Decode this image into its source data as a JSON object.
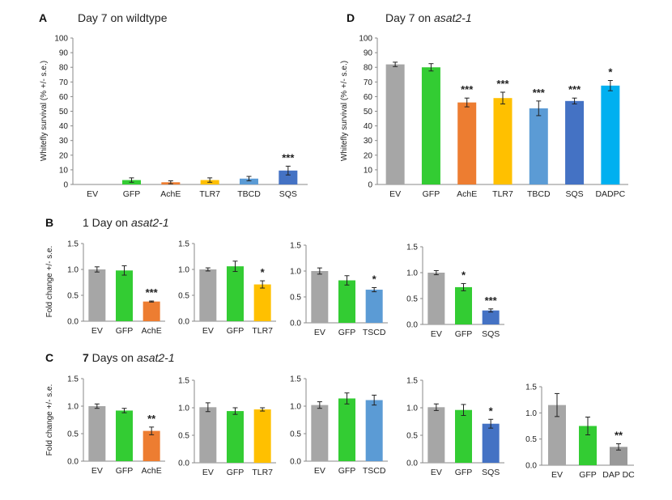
{
  "colors": {
    "EV": "#a6a6a6",
    "GFP": "#33cc33",
    "AchE": "#ed7d31",
    "TLR7": "#ffc000",
    "TBCD": "#5b9bd5",
    "TSCD": "#5b9bd5",
    "SQS": "#4472c4",
    "DADPC": "#00b0f0"
  },
  "panels": {
    "A": {
      "letter": "A",
      "title": "Day 7 on wildtype"
    },
    "B": {
      "letter": "B",
      "title_pre": "1 Day on ",
      "title_italic": "asat2-1"
    },
    "C": {
      "letter": "C",
      "title_bold": "7",
      "title_pre": " Days on ",
      "title_italic": "asat2-1"
    },
    "D": {
      "letter": "D",
      "title_pre": "Day 7 on ",
      "title_italic": "asat2-1"
    }
  },
  "chart_data": [
    {
      "id": "A",
      "type": "bar",
      "title": "Day 7 on wildtype",
      "ylabel": "Whitefly survival (% +/- s.e.)",
      "ylim": [
        0,
        100
      ],
      "yticks": [
        0,
        10,
        20,
        30,
        40,
        50,
        60,
        70,
        80,
        90,
        100
      ],
      "categories": [
        "EV",
        "GFP",
        "AchE",
        "TLR7",
        "TBCD",
        "SQS"
      ],
      "values": [
        0,
        3,
        1.5,
        3,
        4,
        9.5
      ],
      "errors": [
        0,
        1.5,
        1,
        1.5,
        1.5,
        3
      ],
      "significance": [
        "",
        "",
        "",
        "",
        "",
        "***"
      ]
    },
    {
      "id": "D",
      "type": "bar",
      "title": "Day 7 on asat2-1",
      "ylabel": "Whitefly survival (% +/- s.e.)",
      "ylim": [
        0,
        100
      ],
      "yticks": [
        0,
        10,
        20,
        30,
        40,
        50,
        60,
        70,
        80,
        90,
        100
      ],
      "categories": [
        "EV",
        "GFP",
        "AchE",
        "TLR7",
        "TBCD",
        "SQS",
        "DADPC"
      ],
      "values": [
        82,
        80,
        56,
        59,
        52,
        57,
        67.5
      ],
      "errors": [
        1.5,
        2.5,
        3,
        4,
        5,
        2,
        3.5
      ],
      "significance": [
        "",
        "",
        "***",
        "***",
        "***",
        "***",
        "*"
      ]
    },
    {
      "id": "B1",
      "type": "bar",
      "ylabel": "Fold change +/- s.e.",
      "ylim": [
        0,
        1.5
      ],
      "yticks": [
        "0.0",
        "0.5",
        "1.0",
        "1.5"
      ],
      "categories": [
        "EV",
        "GFP",
        "AchE"
      ],
      "values": [
        1.0,
        0.98,
        0.38
      ],
      "errors": [
        0.05,
        0.09,
        0.01
      ],
      "significance": [
        "",
        "",
        "***"
      ]
    },
    {
      "id": "B2",
      "type": "bar",
      "ylim": [
        0,
        1.5
      ],
      "yticks": [
        "0.0",
        "0.5",
        "1.0",
        "1.5"
      ],
      "categories": [
        "EV",
        "GFP",
        "TLR7"
      ],
      "values": [
        1.0,
        1.06,
        0.71
      ],
      "errors": [
        0.03,
        0.1,
        0.07
      ],
      "significance": [
        "",
        "",
        "*"
      ]
    },
    {
      "id": "B3",
      "type": "bar",
      "ylim": [
        0,
        1.5
      ],
      "yticks": [
        "0.0",
        "0.5",
        "1.0",
        "1.5"
      ],
      "categories": [
        "EV",
        "GFP",
        "TSCD"
      ],
      "values": [
        1.0,
        0.82,
        0.64
      ],
      "errors": [
        0.06,
        0.09,
        0.04
      ],
      "significance": [
        "",
        "",
        "*"
      ]
    },
    {
      "id": "B4",
      "type": "bar",
      "ylim": [
        0,
        1.5
      ],
      "yticks": [
        "0.0",
        "0.5",
        "1.0",
        "1.5"
      ],
      "categories": [
        "EV",
        "GFP",
        "SQS"
      ],
      "values": [
        1.0,
        0.72,
        0.27
      ],
      "errors": [
        0.04,
        0.07,
        0.03
      ],
      "significance": [
        "",
        "*",
        "***"
      ]
    },
    {
      "id": "C1",
      "type": "bar",
      "ylabel": "Fold change +/- s.e.",
      "ylim": [
        0,
        1.5
      ],
      "yticks": [
        "0.0",
        "0.5",
        "1.0",
        "1.5"
      ],
      "categories": [
        "EV",
        "GFP",
        "AchE"
      ],
      "values": [
        1.0,
        0.92,
        0.55
      ],
      "errors": [
        0.04,
        0.04,
        0.07
      ],
      "significance": [
        "",
        "",
        "**"
      ]
    },
    {
      "id": "C2",
      "type": "bar",
      "ylim": [
        0,
        1.5
      ],
      "yticks": [
        "0.0",
        "0.5",
        "1.0",
        "1.5"
      ],
      "categories": [
        "EV",
        "GFP",
        "TLR7"
      ],
      "values": [
        1.01,
        0.94,
        0.97
      ],
      "errors": [
        0.08,
        0.06,
        0.03
      ],
      "significance": [
        "",
        "",
        ""
      ]
    },
    {
      "id": "C3",
      "type": "bar",
      "ylim": [
        0,
        1.5
      ],
      "yticks": [
        "0.0",
        "0.5",
        "1.0",
        "1.5"
      ],
      "categories": [
        "EV",
        "GFP",
        "TSCD"
      ],
      "values": [
        1.02,
        1.14,
        1.11
      ],
      "errors": [
        0.06,
        0.1,
        0.09
      ],
      "significance": [
        "",
        "",
        ""
      ]
    },
    {
      "id": "C4",
      "type": "bar",
      "ylim": [
        0,
        1.5
      ],
      "yticks": [
        "0.0",
        "0.5",
        "1.0",
        "1.5"
      ],
      "categories": [
        "EV",
        "GFP",
        "SQS"
      ],
      "values": [
        1.01,
        0.96,
        0.71
      ],
      "errors": [
        0.06,
        0.1,
        0.08
      ],
      "significance": [
        "",
        "",
        "*"
      ]
    },
    {
      "id": "C5",
      "type": "bar",
      "ylim": [
        0,
        1.5
      ],
      "yticks": [
        "0.0",
        "0.5",
        "1.0",
        "1.5"
      ],
      "categories": [
        "EV",
        "GFP",
        "DAP DC"
      ],
      "values": [
        1.15,
        0.75,
        0.35
      ],
      "errors": [
        0.22,
        0.17,
        0.06
      ],
      "significance": [
        "",
        "",
        "**"
      ]
    }
  ]
}
